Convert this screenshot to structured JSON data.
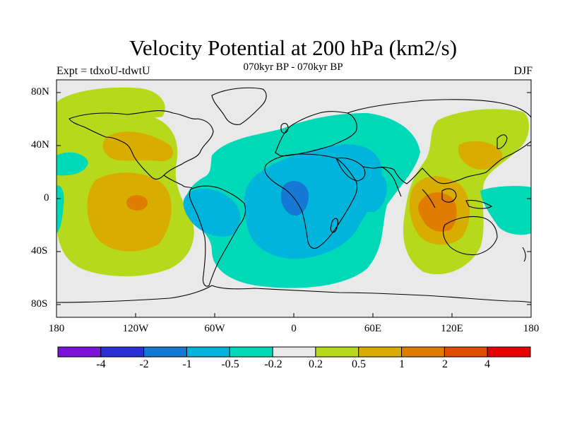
{
  "title": "Velocity Potential at 200 hPa (km2/s)",
  "subtitle": "070kyr BP - 070kyr BP",
  "experiment": "Expt = tdxoU-tdwtU",
  "season": "DJF",
  "lat_labels": [
    "80N",
    "40N",
    "0",
    "40S",
    "80S"
  ],
  "lon_labels": [
    "180",
    "120W",
    "60W",
    "0",
    "60E",
    "120E",
    "180"
  ],
  "colorbar": {
    "labels": [
      "-4",
      "-2",
      "-1",
      "-0.5",
      "-0.2",
      "0.2",
      "0.5",
      "1",
      "2",
      "4"
    ],
    "colors": [
      "#7a12d8",
      "#2b2fd6",
      "#1478d4",
      "#00b4dc",
      "#00d9b8",
      "#e9e9e9",
      "#b6d91c",
      "#d8ac00",
      "#e07c00",
      "#e04c00",
      "#e80000"
    ]
  },
  "colors": {
    "land_outline": "#000000",
    "neutral": "#e9e9e9",
    "pos_weak": "#b6d91c",
    "pos_mid": "#d8ac00",
    "pos_strong": "#e07c00",
    "neg_weak": "#00d9b8",
    "neg_mid": "#00b4dc",
    "neg_strong": "#1478d4"
  },
  "map": {
    "projection": "cylindrical equidistant",
    "lon_range": [
      -180,
      180
    ],
    "lat_range": [
      -90,
      90
    ]
  }
}
